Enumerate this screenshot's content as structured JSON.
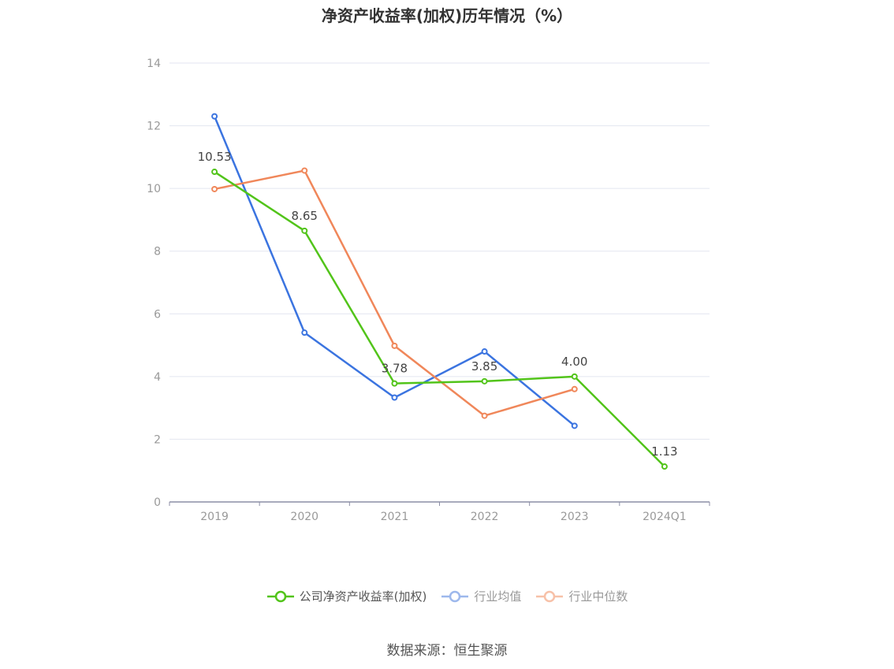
{
  "chart_data": {
    "type": "line",
    "title": "净资产收益率(加权)历年情况（%）",
    "categories": [
      "2019",
      "2020",
      "2021",
      "2022",
      "2023",
      "2024Q1"
    ],
    "ylim": [
      0,
      14
    ],
    "yticks": [
      0,
      2,
      4,
      6,
      8,
      10,
      12,
      14
    ],
    "grid": true,
    "legend_position": "bottom",
    "series": [
      {
        "name": "公司净资产收益率(加权)",
        "color": "#52c41a",
        "active": true,
        "values": [
          10.53,
          8.65,
          3.78,
          3.85,
          4.0,
          1.13
        ],
        "labels": [
          "10.53",
          "8.65",
          "3.78",
          "3.85",
          "4.00",
          "1.13"
        ]
      },
      {
        "name": "行业均值",
        "color": "#3b74e0",
        "legend_color": "#9db8ec",
        "active": false,
        "values": [
          12.3,
          5.4,
          3.33,
          4.8,
          2.43,
          null
        ]
      },
      {
        "name": "行业中位数",
        "color": "#f0875a",
        "legend_color": "#f7c1a8",
        "active": false,
        "values": [
          9.98,
          10.57,
          4.98,
          2.75,
          3.6,
          null
        ]
      }
    ]
  },
  "source": "数据来源：恒生聚源"
}
